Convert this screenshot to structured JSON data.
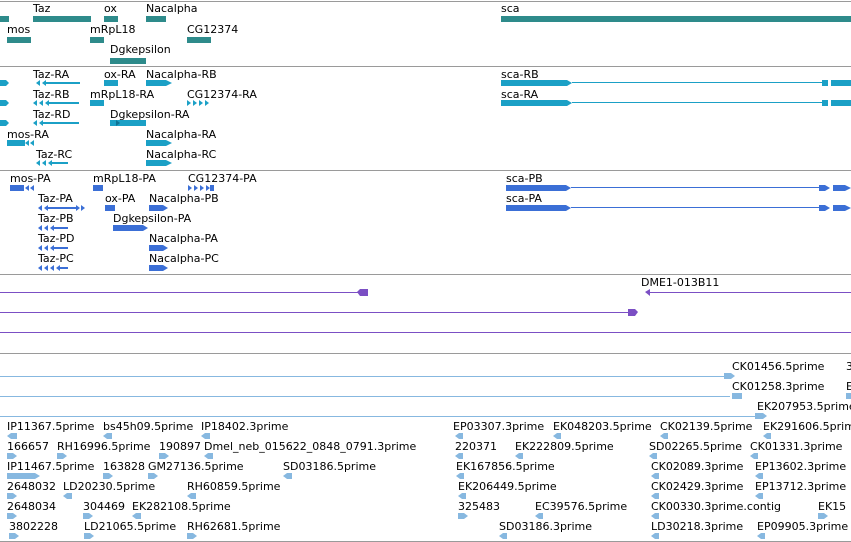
{
  "colors": {
    "gene": "#2e8b8b",
    "transcript": "#1ba0c6",
    "protein": "#3b6fd6",
    "probe": "#7b4fc4",
    "est": "#87b8e0",
    "divider": "#9a9a9a"
  },
  "genes": {
    "labels": [
      "Taz",
      "ox",
      "Nacalpha",
      "sca",
      "mos",
      "mRpL18",
      "CG12374",
      "Dgkepsilon"
    ]
  },
  "transcripts": {
    "labels": [
      "Taz-RA",
      "ox-RA",
      "Nacalpha-RB",
      "sca-RB",
      "Taz-RB",
      "mRpL18-RA",
      "CG12374-RA",
      "sca-RA",
      "Taz-RD",
      "Dgkepsilon-RA",
      "mos-RA",
      "Nacalpha-RA",
      "Taz-RC",
      "Nacalpha-RC"
    ]
  },
  "proteins": {
    "labels": [
      "mos-PA",
      "mRpL18-PA",
      "CG12374-PA",
      "sca-PB",
      "Taz-PA",
      "ox-PA",
      "Nacalpha-PB",
      "sca-PA",
      "Taz-PB",
      "Dgkepsilon-PA",
      "Taz-PD",
      "Nacalpha-PA",
      "Taz-PC",
      "Nacalpha-PC"
    ]
  },
  "probes": {
    "labels": [
      "DME1-013B11"
    ]
  },
  "ests": {
    "labels": [
      "CK01456.5prime",
      "3",
      "CK01258.3prime",
      "E",
      "EK207953.5prime",
      "IP11367.5prime",
      "bs45h09.5prime",
      "IP18402.3prime",
      "EP03307.3prime",
      "EK048203.5prime",
      "CK02139.5prime",
      "EK291606.5prime",
      "166657",
      "RH16996.5prime",
      "190897",
      "Dmel_neb_015622_0848_0791.3prime",
      "220371",
      "EK222809.5prime",
      "SD02265.5prime",
      "CK01331.3prime",
      "IP11467.5prime",
      "163828",
      "GM27136.5prime",
      "SD03186.5prime",
      "EK167856.5prime",
      "CK02089.3prime",
      "EP13602.3prime",
      "2648032",
      "LD20230.5prime",
      "RH60859.5prime",
      "EK206449.5prime",
      "CK02429.3prime",
      "EP13712.3prime",
      "2648034",
      "304469",
      "EK282108.5prime",
      "325483",
      "EC39576.5prime",
      "CK00330.3prime.contig",
      "EK15",
      "3802228",
      "LD21065.5prime",
      "RH62681.5prime",
      "SD03186.3prime",
      "LD30218.3prime",
      "EP09905.3prime"
    ]
  }
}
